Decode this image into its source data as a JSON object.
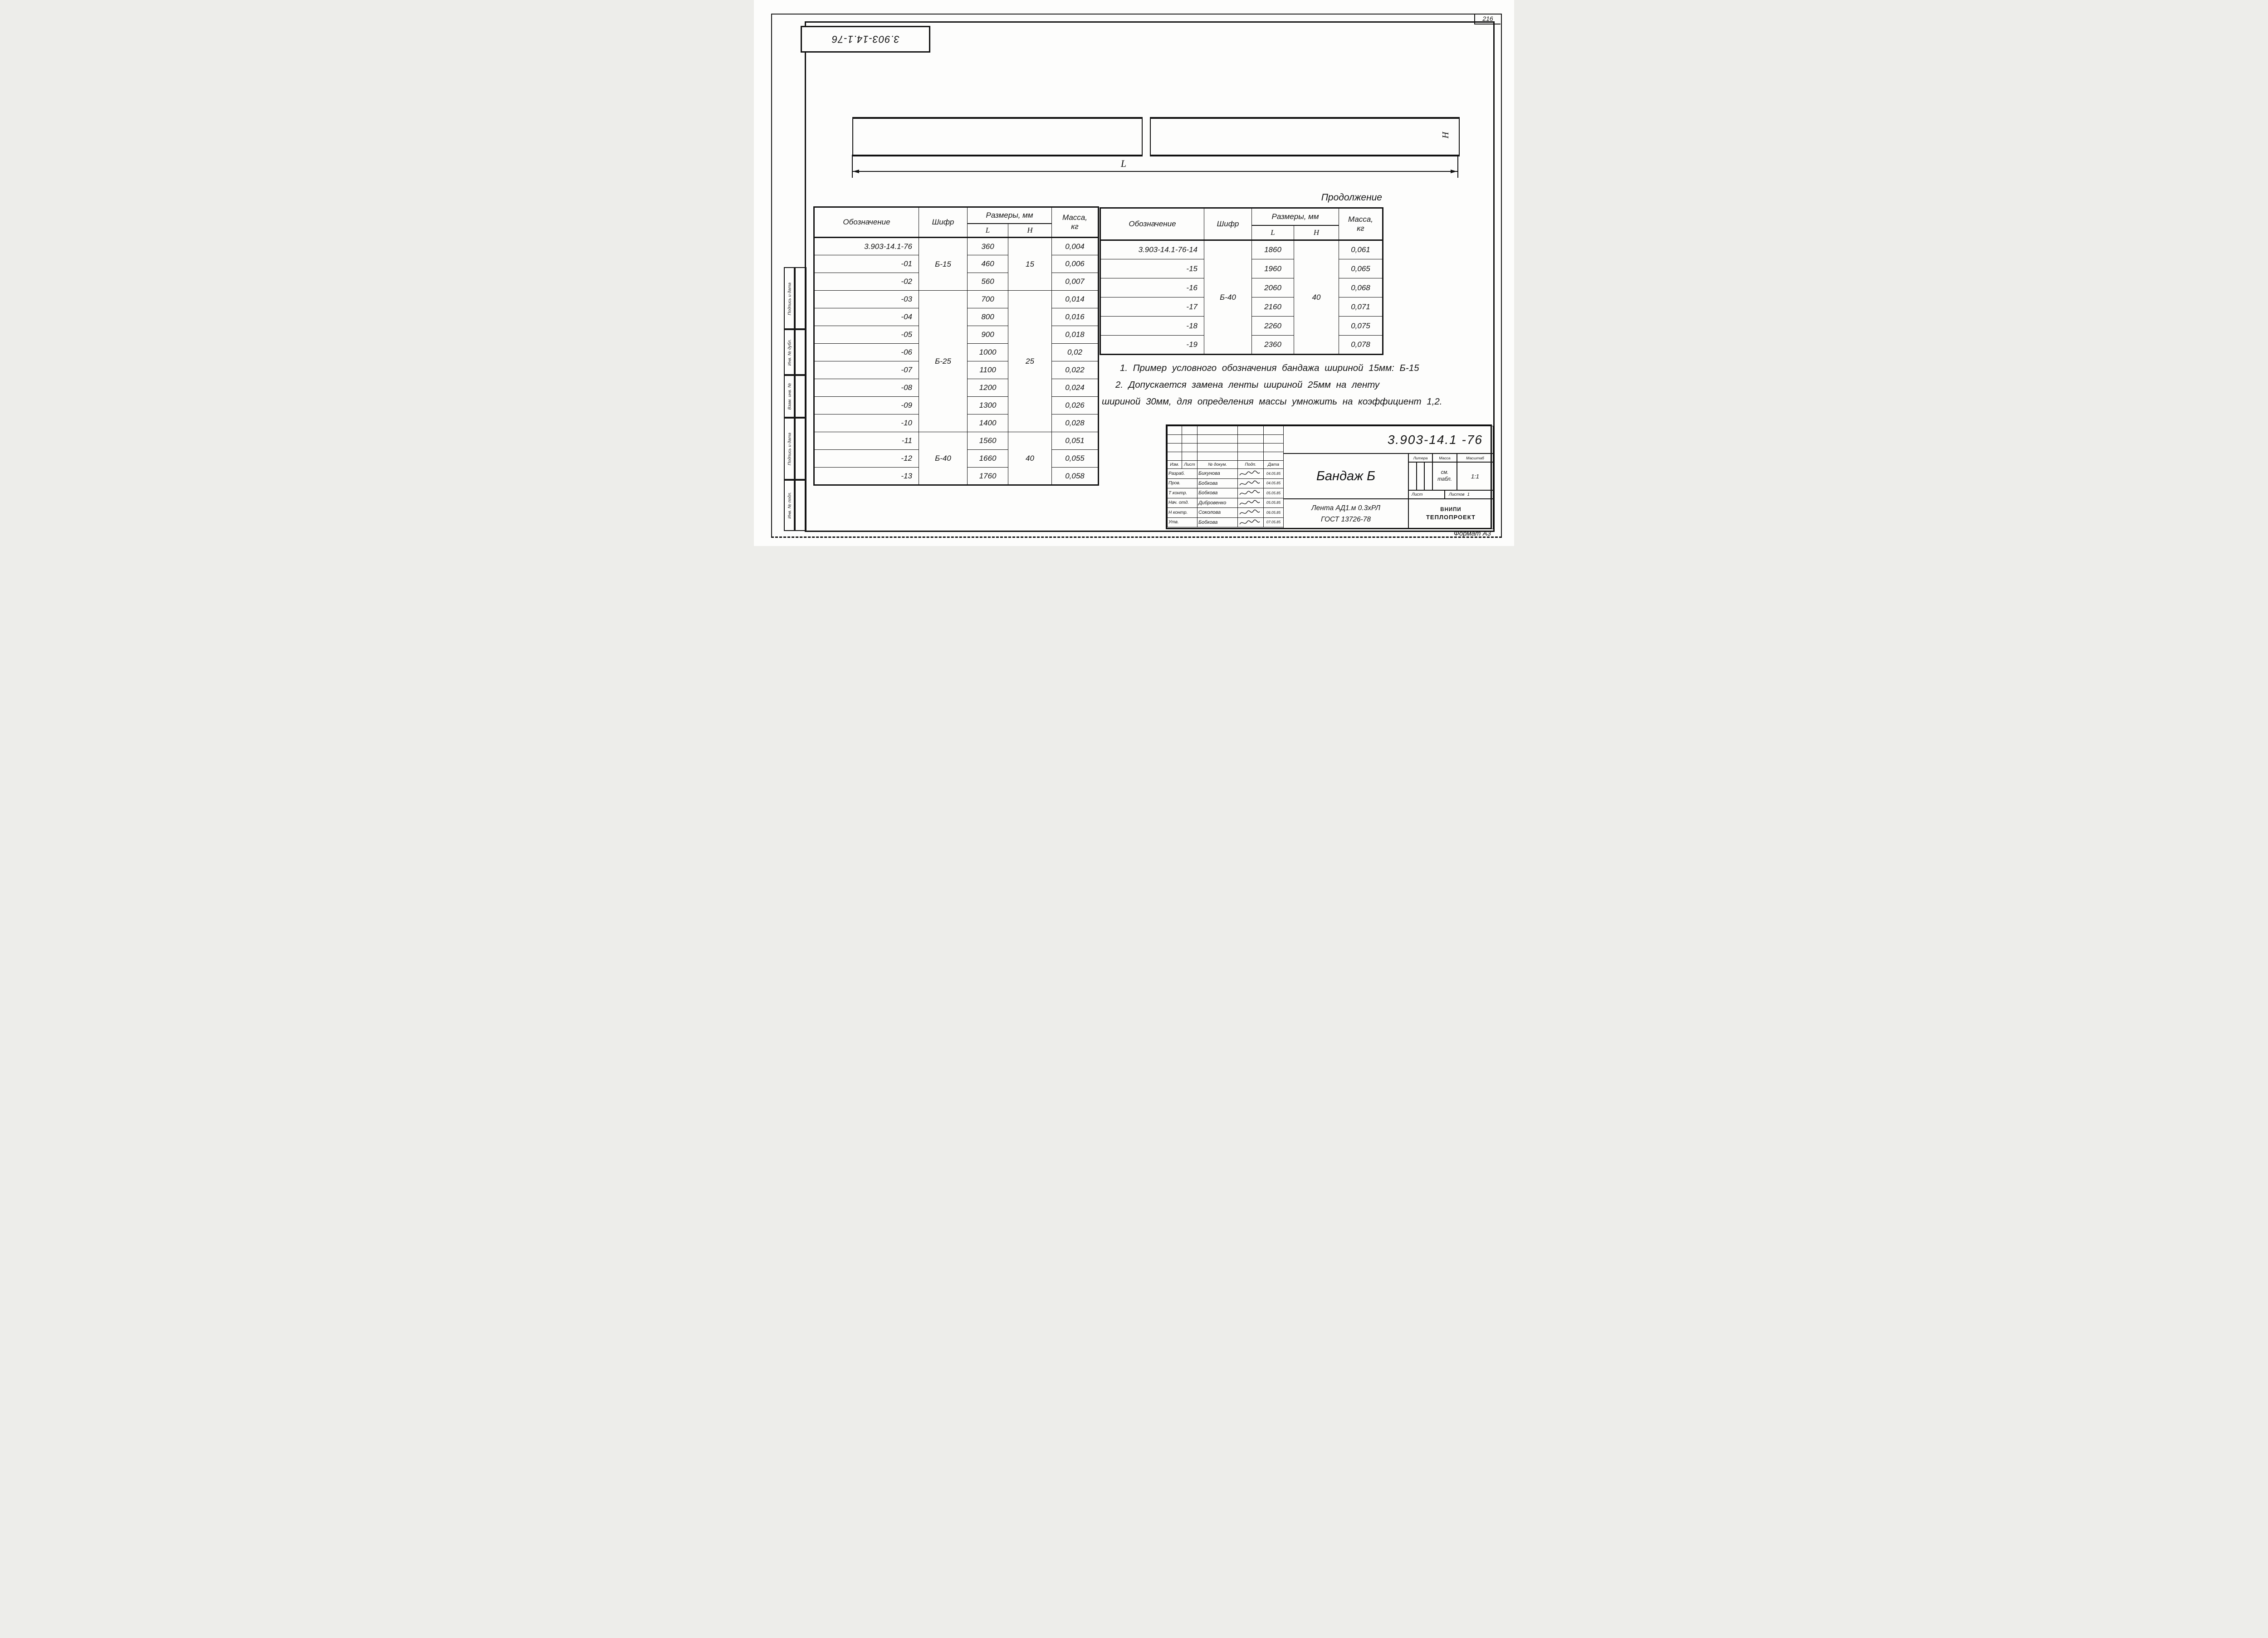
{
  "page": {
    "sheet_number": "216",
    "format_label": "Формат А3",
    "top_stamp": "3.903-14.1-76"
  },
  "drawing": {
    "length_label": "L",
    "height_label": "H"
  },
  "margin_labels": [
    "Подпись и дата",
    "Инв. № дубл.",
    "Взам. инв. №",
    "Подпись и дата",
    "Инв. № подл."
  ],
  "tables": {
    "headers": {
      "designation": "Обозначение",
      "cipher": "Шифр",
      "dimensions": "Размеры, мм",
      "l": "L",
      "h": "H",
      "mass_line1": "Масса,",
      "mass_line2": "кг"
    },
    "continuation_label": "Продолжение",
    "left": {
      "groups": [
        {
          "cipher": "Б-15",
          "h": "15",
          "rows": [
            {
              "d": "3.903-14.1-76",
              "l": "360",
              "m": "0,004"
            },
            {
              "d": "-01",
              "l": "460",
              "m": "0,006"
            },
            {
              "d": "-02",
              "l": "560",
              "m": "0,007"
            }
          ]
        },
        {
          "cipher": "Б-25",
          "h": "25",
          "rows": [
            {
              "d": "-03",
              "l": "700",
              "m": "0,014"
            },
            {
              "d": "-04",
              "l": "800",
              "m": "0,016"
            },
            {
              "d": "-05",
              "l": "900",
              "m": "0,018"
            },
            {
              "d": "-06",
              "l": "1000",
              "m": "0,02"
            },
            {
              "d": "-07",
              "l": "1100",
              "m": "0,022"
            },
            {
              "d": "-08",
              "l": "1200",
              "m": "0,024"
            },
            {
              "d": "-09",
              "l": "1300",
              "m": "0,026"
            },
            {
              "d": "-10",
              "l": "1400",
              "m": "0,028"
            }
          ]
        },
        {
          "cipher": "Б-40",
          "h": "40",
          "rows": [
            {
              "d": "-11",
              "l": "1560",
              "m": "0,051"
            },
            {
              "d": "-12",
              "l": "1660",
              "m": "0,055"
            },
            {
              "d": "-13",
              "l": "1760",
              "m": "0,058"
            }
          ]
        }
      ]
    },
    "right": {
      "groups": [
        {
          "cipher": "Б-40",
          "h": "40",
          "rows": [
            {
              "d": "3.903-14.1-76-14",
              "l": "1860",
              "m": "0,061"
            },
            {
              "d": "-15",
              "l": "1960",
              "m": "0,065"
            },
            {
              "d": "-16",
              "l": "2060",
              "m": "0,068"
            },
            {
              "d": "-17",
              "l": "2160",
              "m": "0,071"
            },
            {
              "d": "-18",
              "l": "2260",
              "m": "0,075"
            },
            {
              "d": "-19",
              "l": "2360",
              "m": "0,078"
            }
          ]
        }
      ]
    }
  },
  "notes": [
    "1. Пример условного обозначения бандажа шириной 15мм: Б-15",
    "2. Допускается замена ленты шириной 25мм на ленту",
    "шириной 30мм, для определения массы умножить на коэффициент 1,2."
  ],
  "title_block": {
    "doc_number": "3.903-14.1 -76",
    "title": "Бандаж Б",
    "material_line1": "Лента АД1.м 0.3хРЛ",
    "material_line2": "ГОСТ 13726-78",
    "org_line1": "ВНИПИ",
    "org_line2": "ТЕПЛОПРОЕКТ",
    "litera_label": "Литера",
    "mass_label": "Масса",
    "scale_label": "Масштаб",
    "mass_value_line1": "см.",
    "mass_value_line2": "табл.",
    "scale_value": "1:1",
    "sheet_label": "Лист",
    "sheets_label": "Листов",
    "sheets_count": "1",
    "change_header": {
      "izm": "Изм.",
      "list": "Лист",
      "doc": "№ докум.",
      "sign": "Подп.",
      "date": "Дата"
    },
    "sign_rows": [
      {
        "role": "Разраб.",
        "name": "Бикунова",
        "date": "04.05.85"
      },
      {
        "role": "Пров.",
        "name": "Бобкова",
        "date": "04.05.85"
      },
      {
        "role": "Т контр.",
        "name": "Бобкова",
        "date": "05.05.85"
      },
      {
        "role": "Нач. отд.",
        "name": "Дибровенко",
        "date": "05.05.85"
      },
      {
        "role": "Н контр.",
        "name": "Соколова",
        "date": "06.05.85"
      },
      {
        "role": "Утв.",
        "name": "Бобкова",
        "date": "07.05.85"
      }
    ]
  }
}
